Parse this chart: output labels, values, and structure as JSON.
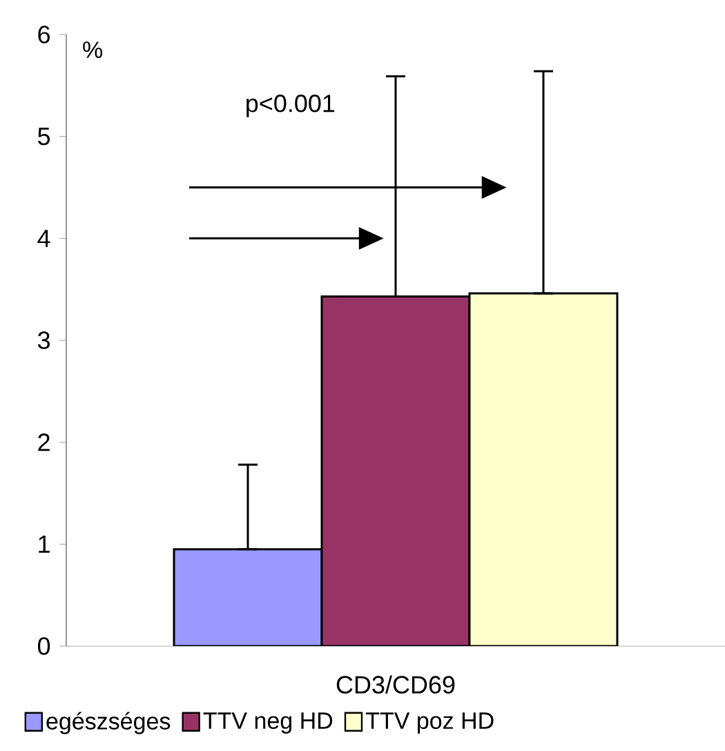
{
  "chart_data": {
    "type": "bar",
    "ylabel": "%",
    "categories": [
      "CD3/CD69"
    ],
    "series": [
      {
        "name": "egészséges",
        "color": "#9999ff",
        "values": [
          0.95
        ],
        "errors": [
          [
            0.95,
            1.78
          ]
        ]
      },
      {
        "name": "TTV neg HD",
        "color": "#993366",
        "values": [
          3.43
        ],
        "errors": [
          [
            3.43,
            5.59
          ]
        ]
      },
      {
        "name": "TTV poz HD",
        "color": "#ffffcc",
        "values": [
          3.46
        ],
        "errors": [
          [
            3.46,
            5.64
          ]
        ]
      }
    ],
    "ylim": [
      0,
      6
    ],
    "yticks": [
      0,
      1,
      2,
      3,
      4,
      5,
      6
    ],
    "legend": "bottom",
    "annotations": [
      "p<0.001"
    ]
  }
}
